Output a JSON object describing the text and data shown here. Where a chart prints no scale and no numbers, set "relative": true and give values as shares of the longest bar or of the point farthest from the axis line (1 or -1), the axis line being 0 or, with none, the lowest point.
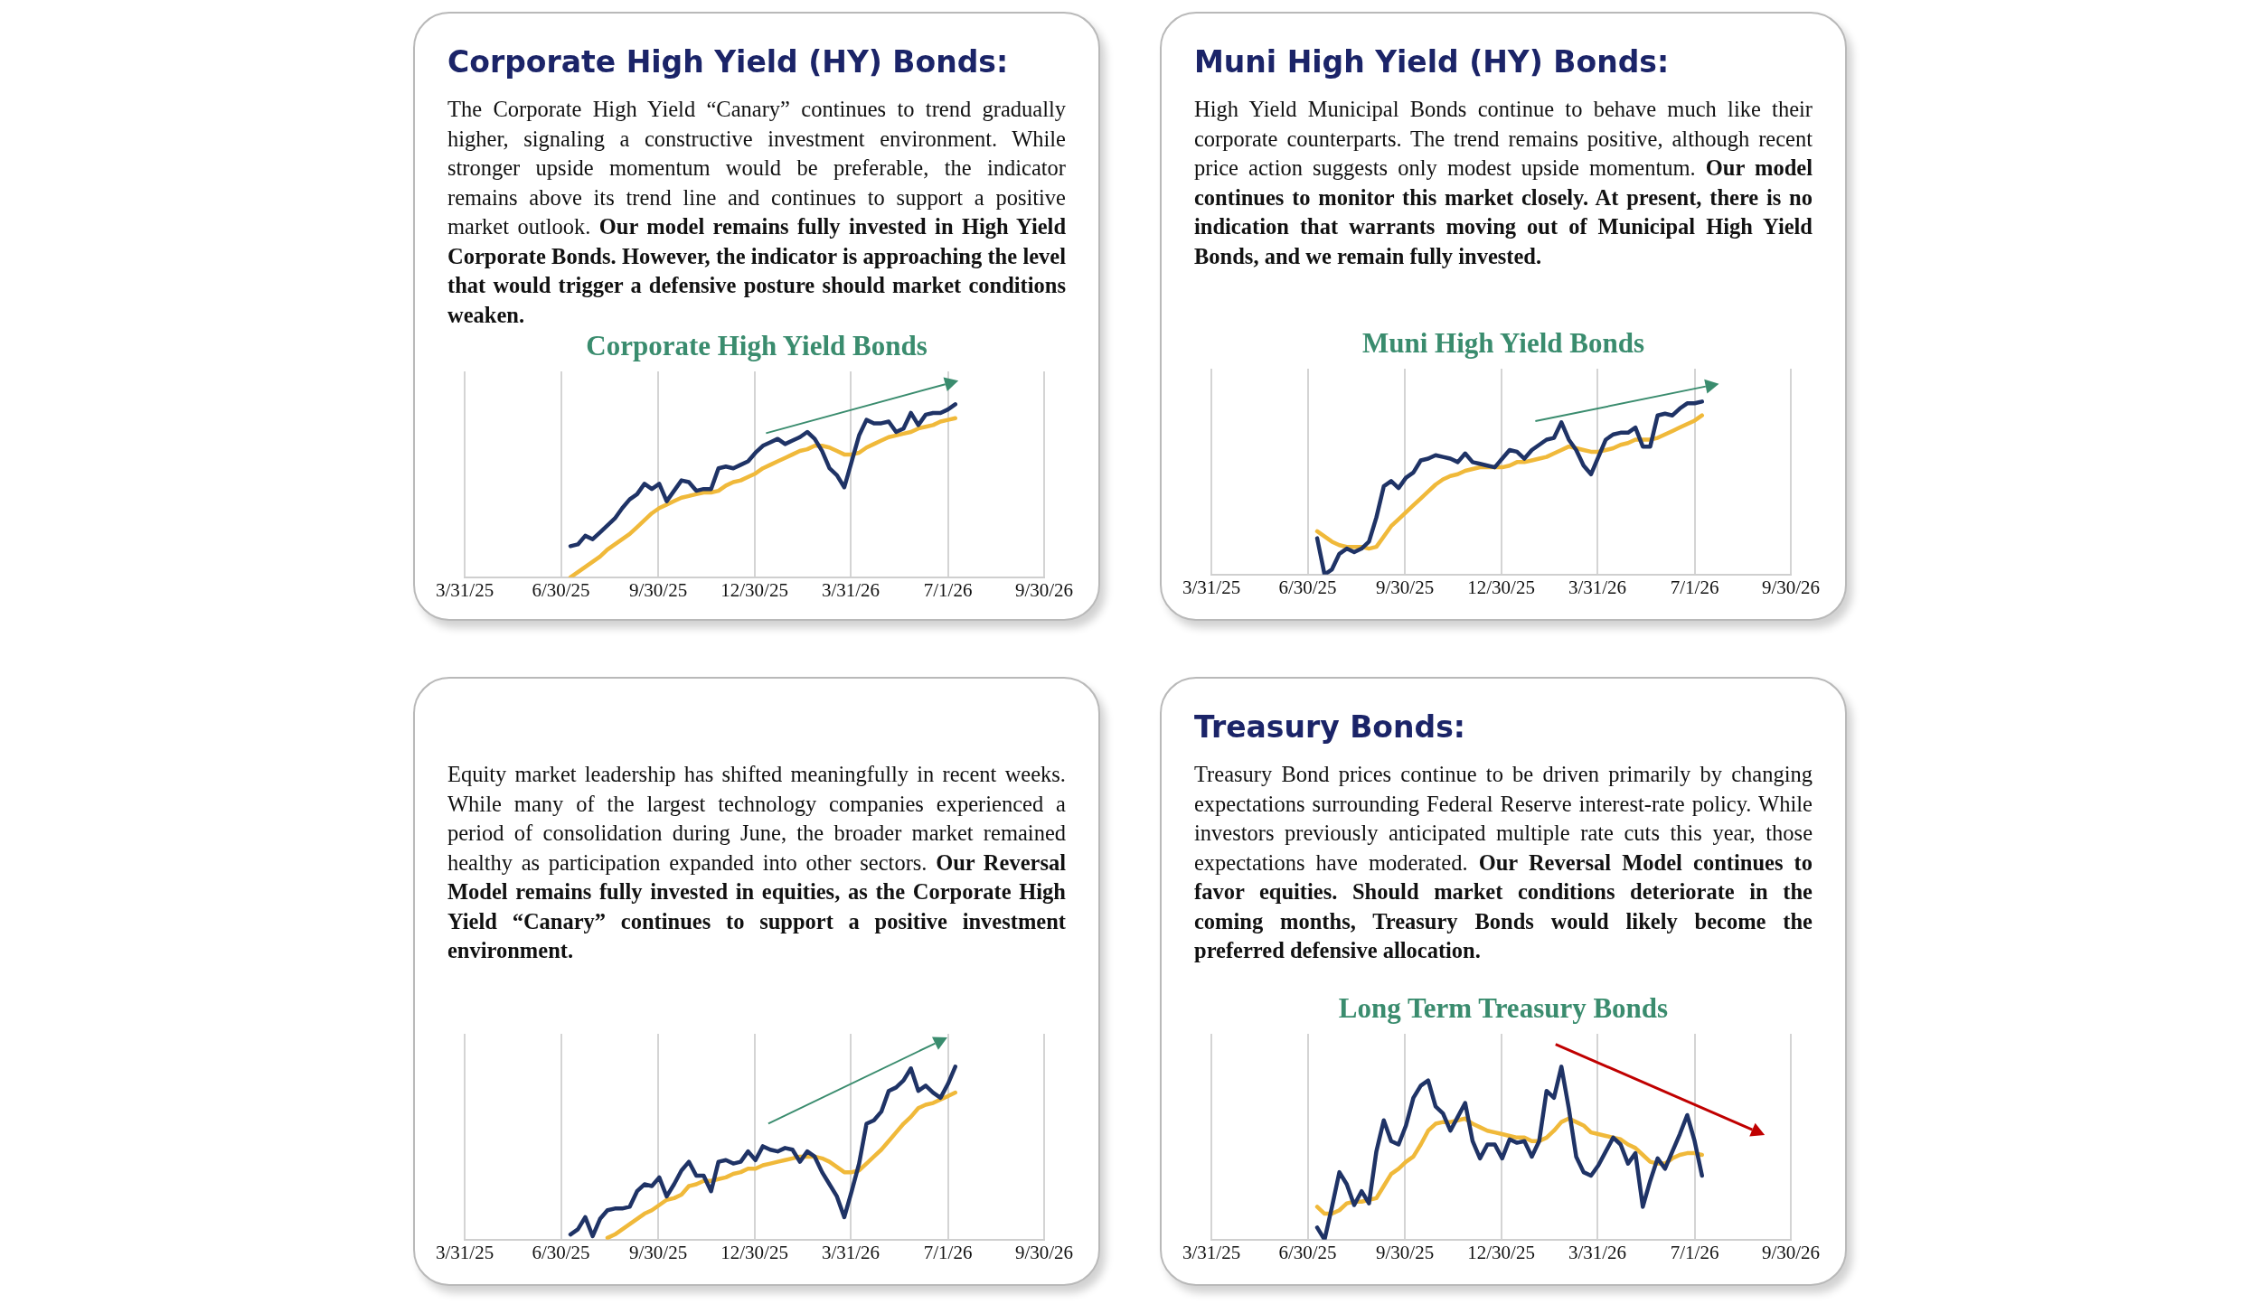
{
  "chart_data": [
    {
      "type": "line",
      "title": "Corporate High Yield (HY) Bonds:",
      "subtitle": "Corporate High Yield Bonds",
      "annotations": [
        "The Corporate High Yield “Canary” continues to trend gradually higher, signaling a constructive investment environment. While stronger upside momentum would be preferable, the indicator remains above its trend line and continues to support a positive market outlook.",
        "Our model remains fully invested in High Yield Corporate Bonds. However, the indicator is approaching the level that would trigger a defensive posture should market conditions weaken."
      ],
      "x": [
        "2025-07-09",
        "2025-07-16",
        "2025-07-23",
        "2025-07-30",
        "2025-08-06",
        "2025-08-13",
        "2025-08-20",
        "2025-08-27",
        "2025-09-03",
        "2025-09-10",
        "2025-09-17",
        "2025-09-24",
        "2025-10-01",
        "2025-10-08",
        "2025-10-15",
        "2025-10-22",
        "2025-10-29",
        "2025-11-05",
        "2025-11-12",
        "2025-11-19",
        "2025-11-26",
        "2025-12-03",
        "2025-12-10",
        "2025-12-17",
        "2025-12-24",
        "2025-12-31",
        "2026-01-07",
        "2026-01-14",
        "2026-01-21",
        "2026-01-28",
        "2026-02-04",
        "2026-02-11",
        "2026-02-18",
        "2026-02-25",
        "2026-03-04",
        "2026-03-11",
        "2026-03-18",
        "2026-03-25",
        "2026-04-01",
        "2026-04-08",
        "2026-04-15",
        "2026-04-22",
        "2026-04-29",
        "2026-05-06",
        "2026-05-13",
        "2026-05-20",
        "2026-05-27",
        "2026-06-03",
        "2026-06-10",
        "2026-06-17",
        "2026-06-24",
        "2026-07-01",
        "2026-07-08"
      ],
      "xlim": [
        "2025-03-31",
        "2026-09-30"
      ],
      "xticks": [
        {
          "value": "2025-03-31",
          "label": "3/31/25"
        },
        {
          "value": "2025-06-30",
          "label": "6/30/25"
        },
        {
          "value": "2025-09-30",
          "label": "9/30/25"
        },
        {
          "value": "2025-12-30",
          "label": "12/30/25"
        },
        {
          "value": "2026-03-31",
          "label": "3/31/26"
        },
        {
          "value": "2026-07-01",
          "label": "7/1/26"
        },
        {
          "value": "2026-09-30",
          "label": "9/30/26"
        }
      ],
      "relative": true,
      "grid": "x",
      "series": [
        {
          "color": "#1f3366",
          "values": [
            0.18,
            0.19,
            0.24,
            0.22,
            0.26,
            0.3,
            0.34,
            0.4,
            0.45,
            0.48,
            0.54,
            0.51,
            0.54,
            0.44,
            0.5,
            0.56,
            0.55,
            0.5,
            0.51,
            0.51,
            0.63,
            0.64,
            0.63,
            0.65,
            0.67,
            0.72,
            0.76,
            0.78,
            0.8,
            0.77,
            0.79,
            0.81,
            0.84,
            0.8,
            0.73,
            0.63,
            0.59,
            0.52,
            0.67,
            0.82,
            0.91,
            0.89,
            0.89,
            0.9,
            0.84,
            0.86,
            0.95,
            0.88,
            0.94,
            0.95,
            0.95,
            0.97,
            1
          ]
        },
        {
          "color": "#f0b93a",
          "values": [
            0,
            0.03,
            0.06,
            0.09,
            0.12,
            0.16,
            0.19,
            0.22,
            0.25,
            0.29,
            0.33,
            0.37,
            0.4,
            0.42,
            0.44,
            0.46,
            0.47,
            0.48,
            0.49,
            0.49,
            0.5,
            0.53,
            0.55,
            0.56,
            0.58,
            0.6,
            0.63,
            0.65,
            0.67,
            0.69,
            0.71,
            0.73,
            0.74,
            0.76,
            0.76,
            0.75,
            0.73,
            0.71,
            0.71,
            0.72,
            0.75,
            0.77,
            0.79,
            0.81,
            0.82,
            0.83,
            0.84,
            0.86,
            0.87,
            0.88,
            0.9,
            0.91,
            0.92
          ]
        }
      ]
    },
    {
      "type": "line",
      "title": "Muni High Yield (HY) Bonds:",
      "subtitle": "Muni High Yield Bonds",
      "annotations": [
        "High Yield Municipal Bonds continue to behave much like their corporate counterparts. The trend remains positive, although recent price action suggests only modest upside momentum.",
        "Our model continues to monitor this market closely. At present, there is no indication that warrants moving out of Municipal High Yield Bonds, and we remain fully invested."
      ],
      "x": [
        "2025-07-09",
        "2025-07-16",
        "2025-07-23",
        "2025-07-30",
        "2025-08-06",
        "2025-08-13",
        "2025-08-20",
        "2025-08-27",
        "2025-09-03",
        "2025-09-10",
        "2025-09-17",
        "2025-09-24",
        "2025-10-01",
        "2025-10-08",
        "2025-10-15",
        "2025-10-22",
        "2025-10-29",
        "2025-11-05",
        "2025-11-12",
        "2025-11-19",
        "2025-11-26",
        "2025-12-03",
        "2025-12-10",
        "2025-12-17",
        "2025-12-24",
        "2025-12-31",
        "2026-01-07",
        "2026-01-14",
        "2026-01-21",
        "2026-01-28",
        "2026-02-04",
        "2026-02-11",
        "2026-02-18",
        "2026-02-25",
        "2026-03-04",
        "2026-03-11",
        "2026-03-18",
        "2026-03-25",
        "2026-04-01",
        "2026-04-08",
        "2026-04-15",
        "2026-04-22",
        "2026-04-29",
        "2026-05-06",
        "2026-05-13",
        "2026-05-20",
        "2026-05-27",
        "2026-06-03",
        "2026-06-10",
        "2026-06-17",
        "2026-06-24",
        "2026-07-01",
        "2026-07-08"
      ],
      "xlim": [
        "2025-03-31",
        "2026-09-30"
      ],
      "xticks": [
        {
          "value": "2025-03-31",
          "label": "3/31/25"
        },
        {
          "value": "2025-06-30",
          "label": "6/30/25"
        },
        {
          "value": "2025-09-30",
          "label": "9/30/25"
        },
        {
          "value": "2025-12-30",
          "label": "12/30/25"
        },
        {
          "value": "2026-03-31",
          "label": "3/31/26"
        },
        {
          "value": "2026-07-01",
          "label": "7/1/26"
        },
        {
          "value": "2026-09-30",
          "label": "9/30/26"
        }
      ],
      "relative": true,
      "grid": "x",
      "series": [
        {
          "color": "#1f3366",
          "values": [
            0.21,
            0,
            0.03,
            0.12,
            0.15,
            0.13,
            0.15,
            0.19,
            0.33,
            0.51,
            0.54,
            0.5,
            0.56,
            0.59,
            0.66,
            0.67,
            0.69,
            0.68,
            0.67,
            0.65,
            0.7,
            0.65,
            0.64,
            0.63,
            0.62,
            0.67,
            0.72,
            0.71,
            0.67,
            0.72,
            0.75,
            0.78,
            0.79,
            0.88,
            0.78,
            0.72,
            0.63,
            0.58,
            0.68,
            0.78,
            0.81,
            0.82,
            0.82,
            0.85,
            0.74,
            0.74,
            0.92,
            0.93,
            0.92,
            0.96,
            0.99,
            0.99,
            1
          ]
        },
        {
          "color": "#f0b93a",
          "values": [
            0.25,
            0.22,
            0.19,
            0.17,
            0.16,
            0.16,
            0.16,
            0.15,
            0.16,
            0.22,
            0.28,
            0.32,
            0.36,
            0.4,
            0.44,
            0.48,
            0.52,
            0.55,
            0.57,
            0.58,
            0.6,
            0.61,
            0.62,
            0.62,
            0.62,
            0.62,
            0.63,
            0.65,
            0.65,
            0.66,
            0.67,
            0.68,
            0.7,
            0.72,
            0.74,
            0.73,
            0.72,
            0.71,
            0.71,
            0.72,
            0.73,
            0.75,
            0.76,
            0.78,
            0.78,
            0.78,
            0.79,
            0.81,
            0.83,
            0.85,
            0.87,
            0.89,
            0.92
          ]
        }
      ]
    },
    {
      "type": "line",
      "annotations": [
        "Equity market leadership has shifted meaningfully in recent weeks. While many of the largest technology companies experienced a period of consolidation during June, the broader market remained healthy as participation expanded into other sectors.",
        "Our Reversal Model remains fully invested in equities, as the Corporate High Yield “Canary” continues to support a positive investment environment."
      ],
      "x": [
        "2025-07-09",
        "2025-07-16",
        "2025-07-23",
        "2025-07-30",
        "2025-08-06",
        "2025-08-13",
        "2025-08-20",
        "2025-08-27",
        "2025-09-03",
        "2025-09-10",
        "2025-09-17",
        "2025-09-24",
        "2025-10-01",
        "2025-10-08",
        "2025-10-15",
        "2025-10-22",
        "2025-10-29",
        "2025-11-05",
        "2025-11-12",
        "2025-11-19",
        "2025-11-26",
        "2025-12-03",
        "2025-12-10",
        "2025-12-17",
        "2025-12-24",
        "2025-12-31",
        "2026-01-07",
        "2026-01-14",
        "2026-01-21",
        "2026-01-28",
        "2026-02-04",
        "2026-02-11",
        "2026-02-18",
        "2026-02-25",
        "2026-03-04",
        "2026-03-11",
        "2026-03-18",
        "2026-03-25",
        "2026-04-01",
        "2026-04-08",
        "2026-04-15",
        "2026-04-22",
        "2026-04-29",
        "2026-05-06",
        "2026-05-13",
        "2026-05-20",
        "2026-05-27",
        "2026-06-03",
        "2026-06-10",
        "2026-06-17",
        "2026-06-24",
        "2026-07-01",
        "2026-07-08"
      ],
      "xlim": [
        "2025-03-31",
        "2026-09-30"
      ],
      "xticks": [
        {
          "value": "2025-03-31",
          "label": "3/31/25"
        },
        {
          "value": "2025-06-30",
          "label": "6/30/25"
        },
        {
          "value": "2025-09-30",
          "label": "9/30/25"
        },
        {
          "value": "2025-12-30",
          "label": "12/30/25"
        },
        {
          "value": "2026-03-31",
          "label": "3/31/26"
        },
        {
          "value": "2026-07-01",
          "label": "7/1/26"
        },
        {
          "value": "2026-09-30",
          "label": "9/30/26"
        }
      ],
      "relative": true,
      "grid": "x",
      "series": [
        {
          "color": "#1f3366",
          "values": [
            0.03,
            0.06,
            0.13,
            0.02,
            0.12,
            0.17,
            0.18,
            0.18,
            0.19,
            0.28,
            0.32,
            0.31,
            0.36,
            0.25,
            0.32,
            0.4,
            0.45,
            0.37,
            0.37,
            0.28,
            0.45,
            0.46,
            0.44,
            0.45,
            0.51,
            0.46,
            0.54,
            0.52,
            0.51,
            0.53,
            0.52,
            0.45,
            0.51,
            0.48,
            0.39,
            0.32,
            0.25,
            0.13,
            0.28,
            0.44,
            0.67,
            0.69,
            0.74,
            0.86,
            0.88,
            0.92,
            0.99,
            0.86,
            0.89,
            0.85,
            0.82,
            0.9,
            1
          ]
        },
        {
          "color": "#f0b93a",
          "values": [
            null,
            null,
            null,
            null,
            null,
            0.01,
            0.03,
            0.06,
            0.09,
            0.12,
            0.15,
            0.17,
            0.2,
            0.23,
            0.24,
            0.26,
            0.31,
            0.32,
            0.34,
            0.34,
            0.35,
            0.36,
            0.38,
            0.39,
            0.41,
            0.41,
            0.43,
            0.44,
            0.45,
            0.46,
            0.47,
            0.48,
            0.48,
            0.48,
            0.47,
            0.45,
            0.42,
            0.39,
            0.39,
            0.4,
            0.44,
            0.48,
            0.52,
            0.57,
            0.62,
            0.67,
            0.71,
            0.76,
            0.78,
            0.79,
            0.81,
            0.83,
            0.85
          ]
        }
      ]
    },
    {
      "type": "line",
      "title": "Treasury Bonds:",
      "subtitle": "Long Term Treasury Bonds",
      "annotations": [
        "Treasury Bond prices continue to be driven primarily by changing expectations surrounding Federal Reserve interest-rate policy. While investors previously anticipated multiple rate cuts this year, those expectations have moderated.",
        "Our Reversal Model continues to favor equities. Should market conditions deteriorate in the coming months, Treasury Bonds would likely become the preferred defensive allocation."
      ],
      "x": [
        "2025-07-09",
        "2025-07-16",
        "2025-07-23",
        "2025-07-30",
        "2025-08-06",
        "2025-08-13",
        "2025-08-20",
        "2025-08-27",
        "2025-09-03",
        "2025-09-10",
        "2025-09-17",
        "2025-09-24",
        "2025-10-01",
        "2025-10-08",
        "2025-10-15",
        "2025-10-22",
        "2025-10-29",
        "2025-11-05",
        "2025-11-12",
        "2025-11-19",
        "2025-11-26",
        "2025-12-03",
        "2025-12-10",
        "2025-12-17",
        "2025-12-24",
        "2025-12-31",
        "2026-01-07",
        "2026-01-14",
        "2026-01-21",
        "2026-01-28",
        "2026-02-04",
        "2026-02-11",
        "2026-02-18",
        "2026-02-25",
        "2026-03-04",
        "2026-03-11",
        "2026-03-18",
        "2026-03-25",
        "2026-04-01",
        "2026-04-08",
        "2026-04-15",
        "2026-04-22",
        "2026-04-29",
        "2026-05-06",
        "2026-05-13",
        "2026-05-20",
        "2026-05-27",
        "2026-06-03",
        "2026-06-10",
        "2026-06-17",
        "2026-06-24",
        "2026-07-01",
        "2026-07-08"
      ],
      "xlim": [
        "2025-03-31",
        "2026-09-30"
      ],
      "xticks": [
        {
          "value": "2025-03-31",
          "label": "3/31/25"
        },
        {
          "value": "2025-06-30",
          "label": "6/30/25"
        },
        {
          "value": "2025-09-30",
          "label": "9/30/25"
        },
        {
          "value": "2025-12-30",
          "label": "12/30/25"
        },
        {
          "value": "2026-03-31",
          "label": "3/31/26"
        },
        {
          "value": "2026-07-01",
          "label": "7/1/26"
        },
        {
          "value": "2026-09-30",
          "label": "9/30/26"
        }
      ],
      "relative": true,
      "grid": "x",
      "series": [
        {
          "color": "#1f3366",
          "values": [
            0.07,
            0,
            0.19,
            0.39,
            0.32,
            0.2,
            0.28,
            0.21,
            0.51,
            0.69,
            0.57,
            0.55,
            0.66,
            0.82,
            0.89,
            0.92,
            0.77,
            0.73,
            0.63,
            0.71,
            0.79,
            0.57,
            0.47,
            0.55,
            0.55,
            0.47,
            0.58,
            0.56,
            0.57,
            0.48,
            0.57,
            0.86,
            0.82,
            1,
            0.76,
            0.48,
            0.39,
            0.37,
            0.43,
            0.51,
            0.59,
            0.55,
            0.44,
            0.5,
            0.19,
            0.34,
            0.47,
            0.41,
            0.51,
            0.61,
            0.72,
            0.57,
            0.37
          ]
        },
        {
          "color": "#f0b93a",
          "values": [
            0.19,
            0.15,
            0.15,
            0.17,
            0.21,
            0.22,
            0.22,
            0.23,
            0.24,
            0.31,
            0.38,
            0.41,
            0.45,
            0.48,
            0.55,
            0.63,
            0.67,
            0.68,
            0.68,
            0.69,
            0.7,
            0.67,
            0.65,
            0.63,
            0.62,
            0.61,
            0.6,
            0.59,
            0.59,
            0.57,
            0.57,
            0.59,
            0.63,
            0.68,
            0.7,
            0.68,
            0.66,
            0.62,
            0.61,
            0.6,
            0.59,
            0.58,
            0.55,
            0.53,
            0.49,
            0.45,
            0.44,
            0.44,
            0.47,
            0.49,
            0.5,
            0.5,
            0.49
          ]
        }
      ]
    }
  ]
}
